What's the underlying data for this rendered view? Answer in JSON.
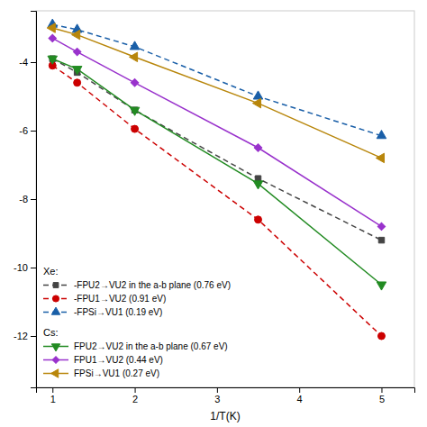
{
  "chart_data": {
    "type": "line",
    "x_label": "1/T(K)",
    "xlim": [
      0.8,
      5.4
    ],
    "ylim": [
      -13.5,
      -2.5
    ],
    "xticks": [
      1,
      2,
      3,
      4,
      5
    ],
    "yticks": [
      -4,
      -6,
      -8,
      -10,
      -12
    ],
    "x": [
      1.0,
      1.3,
      2.0,
      3.5,
      5.0
    ],
    "series": [
      {
        "name": "-FPU2→VU2 in the a-b plane (0.76 eV)",
        "group": "Xe:",
        "color": "#444444",
        "line_style": "dashed",
        "marker": "square",
        "values": [
          -3.9,
          -4.3,
          -5.4,
          -7.4,
          -9.2
        ]
      },
      {
        "name": "-FPU1→VU2 (0.91 eV)",
        "group": "Xe:",
        "color": "#cc0000",
        "line_style": "dashed",
        "marker": "circle",
        "values": [
          -4.1,
          -4.6,
          -5.95,
          -8.6,
          -12.0
        ]
      },
      {
        "name": "-FPSi→VU1 (0.19 eV)",
        "group": "Xe:",
        "color": "#1a5fa8",
        "line_style": "dashed",
        "marker": "triangle-up",
        "values": [
          -2.9,
          -3.05,
          -3.55,
          -5.0,
          -6.15
        ]
      },
      {
        "name": "FPU2→VU2 in the a-b plane (0.67 eV)",
        "group": "Cs:",
        "color": "#228B22",
        "line_style": "solid",
        "marker": "triangle-down",
        "values": [
          -3.9,
          -4.2,
          -5.4,
          -7.55,
          -10.5
        ]
      },
      {
        "name": "FPU1→VU2 (0.44 eV)",
        "group": "Cs:",
        "color": "#9932CC",
        "line_style": "solid",
        "marker": "diamond",
        "values": [
          -3.3,
          -3.7,
          -4.6,
          -6.5,
          -8.8
        ]
      },
      {
        "name": "FPSi→VU1 (0.27 eV)",
        "group": "Cs:",
        "color": "#b8860b",
        "line_style": "solid",
        "marker": "triangle-left",
        "values": [
          -3.0,
          -3.2,
          -3.85,
          -5.2,
          -6.8
        ]
      }
    ],
    "legend": "lower left"
  }
}
